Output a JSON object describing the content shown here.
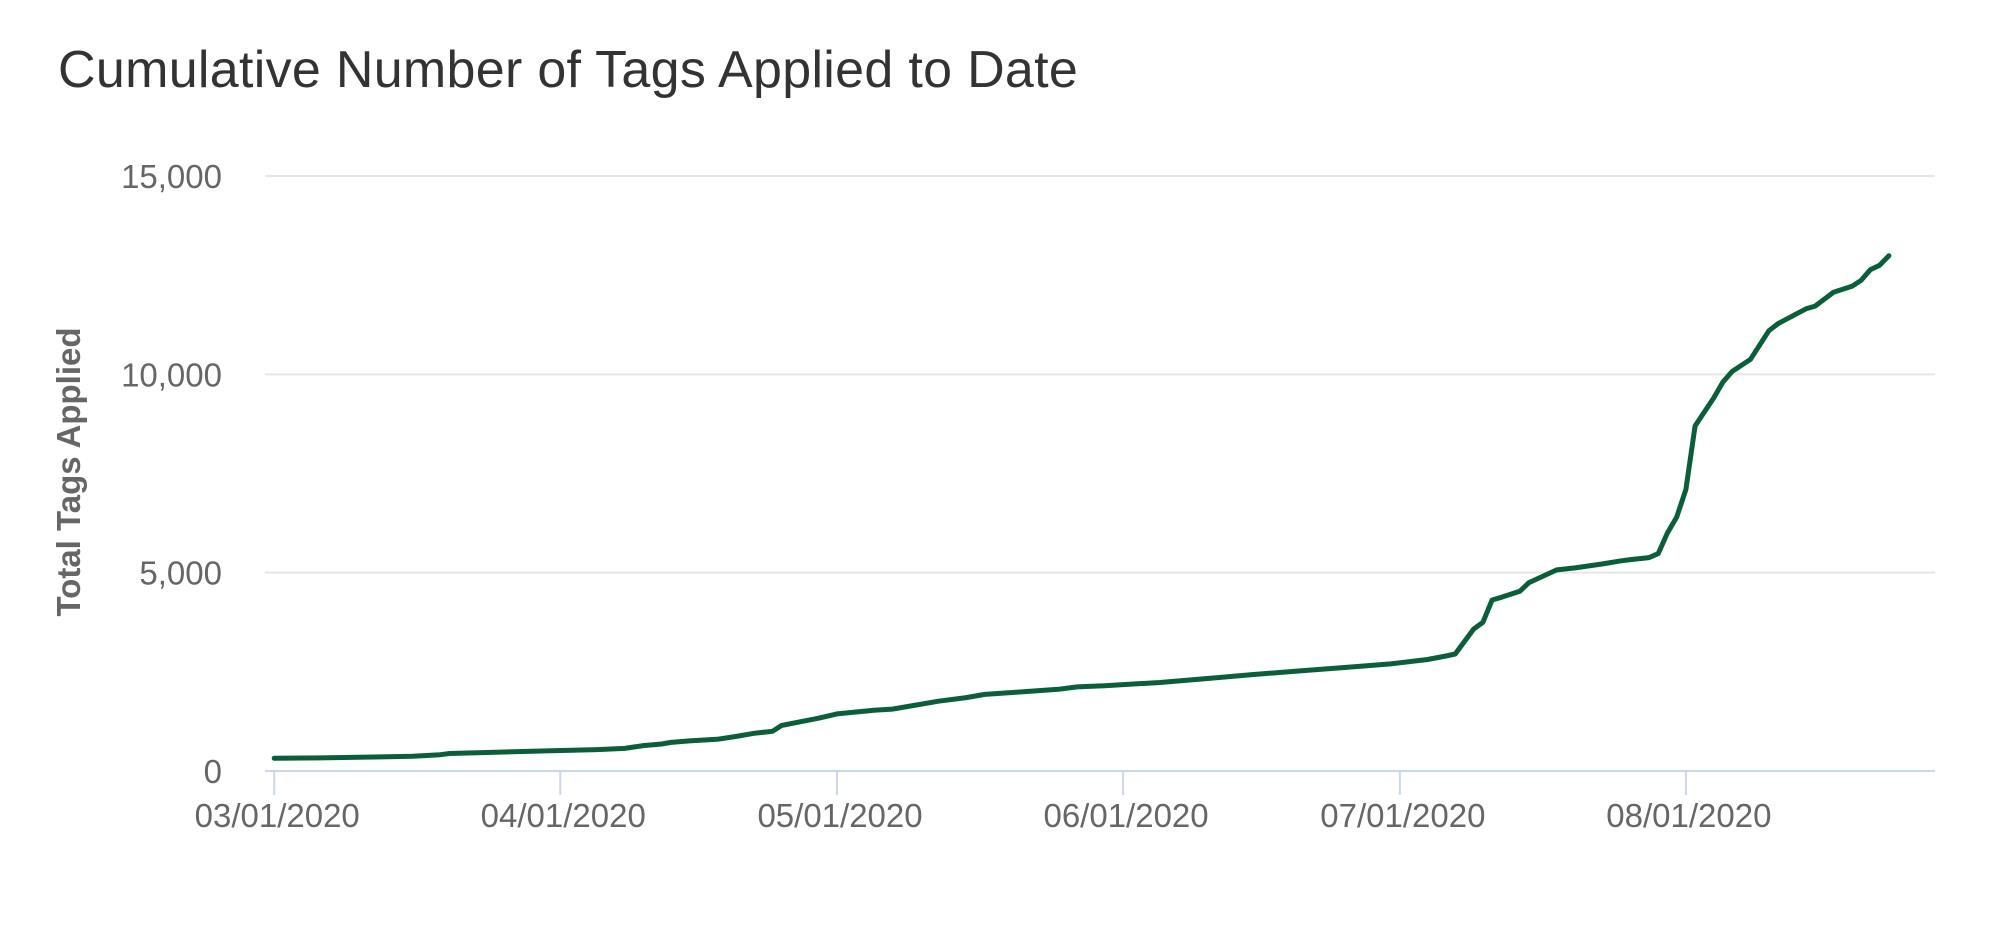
{
  "chart_data": {
    "type": "line",
    "title": "Cumulative Number of Tags Applied to Date",
    "xlabel": "",
    "ylabel": "Total Tags Applied",
    "ylim": [
      0,
      15000
    ],
    "y_ticks": [
      0,
      5000,
      10000,
      15000
    ],
    "y_tick_labels": [
      "0",
      "5,000",
      "10,000",
      "15,000"
    ],
    "x_tick_dates": [
      "2020-03-01",
      "2020-04-01",
      "2020-05-01",
      "2020-06-01",
      "2020-07-01",
      "2020-08-01"
    ],
    "x_tick_labels": [
      "03/01/2020",
      "04/01/2020",
      "05/01/2020",
      "06/01/2020",
      "07/01/2020",
      "08/01/2020"
    ],
    "xlim": [
      "2020-02-29",
      "2020-08-28"
    ],
    "grid": true,
    "line_color": "#0b5e3a",
    "series": [
      {
        "x": [
          "2020-03-01",
          "2020-03-06",
          "2020-03-11",
          "2020-03-16",
          "2020-03-19",
          "2020-03-20",
          "2020-03-26",
          "2020-03-31",
          "2020-04-05",
          "2020-04-08",
          "2020-04-10",
          "2020-04-12",
          "2020-04-13",
          "2020-04-15",
          "2020-04-18",
          "2020-04-20",
          "2020-04-22",
          "2020-04-24",
          "2020-04-25",
          "2020-04-27",
          "2020-04-29",
          "2020-05-01",
          "2020-05-05",
          "2020-05-07",
          "2020-05-12",
          "2020-05-15",
          "2020-05-17",
          "2020-05-20",
          "2020-05-25",
          "2020-05-27",
          "2020-05-30",
          "2020-06-05",
          "2020-06-10",
          "2020-06-15",
          "2020-06-20",
          "2020-06-25",
          "2020-06-30",
          "2020-07-04",
          "2020-07-06",
          "2020-07-07",
          "2020-07-09",
          "2020-07-10",
          "2020-07-11",
          "2020-07-12",
          "2020-07-14",
          "2020-07-15",
          "2020-07-18",
          "2020-07-20",
          "2020-07-23",
          "2020-07-25",
          "2020-07-26",
          "2020-07-28",
          "2020-07-29",
          "2020-07-30",
          "2020-07-31",
          "2020-08-01",
          "2020-08-02",
          "2020-08-04",
          "2020-08-05",
          "2020-08-06",
          "2020-08-08",
          "2020-08-10",
          "2020-08-11",
          "2020-08-14",
          "2020-08-15",
          "2020-08-17",
          "2020-08-19",
          "2020-08-20",
          "2020-08-21",
          "2020-08-22",
          "2020-08-23"
        ],
        "values": [
          320,
          330,
          350,
          370,
          410,
          440,
          480,
          510,
          540,
          570,
          640,
          680,
          720,
          760,
          800,
          870,
          950,
          1000,
          1150,
          1240,
          1330,
          1440,
          1530,
          1560,
          1760,
          1850,
          1930,
          1980,
          2060,
          2120,
          2150,
          2230,
          2330,
          2430,
          2520,
          2610,
          2700,
          2810,
          2900,
          2950,
          3580,
          3750,
          4310,
          4380,
          4530,
          4750,
          5070,
          5120,
          5220,
          5300,
          5330,
          5380,
          5480,
          6000,
          6400,
          7100,
          8700,
          9400,
          9800,
          10070,
          10380,
          11100,
          11280,
          11650,
          11720,
          12070,
          12220,
          12370,
          12640,
          12750,
          12990
        ]
      }
    ]
  }
}
